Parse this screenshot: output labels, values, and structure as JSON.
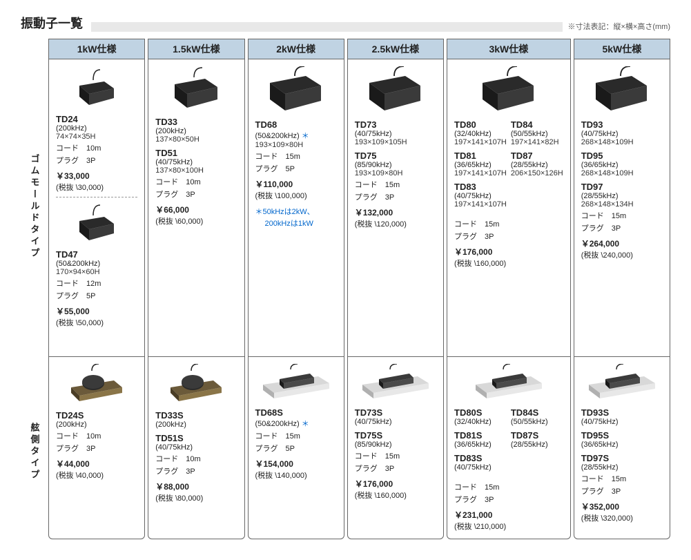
{
  "title": "振動子一覧",
  "dim_note": "※寸法表記：縦×横×高さ(mm)",
  "row_labels": {
    "top": "ゴムモールドタイプ",
    "bottom": "舷側タイプ"
  },
  "columns": [
    {
      "header": "1kW仕様",
      "top": [
        {
          "img": "box-small",
          "model": "TD24",
          "freq": "(200kHz)",
          "dim": "74×74×35H",
          "cord": "コード　10m",
          "plug": "プラグ　3P",
          "price": "￥33,000",
          "price_ex": "(税抜 \\30,000)"
        },
        {
          "divider": true
        },
        {
          "img": "box-small",
          "model": "TD47",
          "freq": "(50&200kHz)",
          "dim": "170×94×60H",
          "cord": "コード　12m",
          "plug": "プラグ　5P",
          "price": "￥55,000",
          "price_ex": "(税抜 \\50,000)"
        }
      ],
      "bottom": [
        {
          "img": "bracket-brass",
          "model": "TD24S",
          "freq": "(200kHz)",
          "cord": "コード　10m",
          "plug": "プラグ　3P",
          "price": "￥44,000",
          "price_ex": "(税抜 \\40,000)"
        }
      ]
    },
    {
      "header": "1.5kW仕様",
      "top": [
        {
          "img": "box-med",
          "model": "TD33",
          "freq": "(200kHz)",
          "dim": "137×80×50H"
        },
        {
          "model": "TD51",
          "freq": "(40/75kHz)",
          "dim": "137×80×100H",
          "cord": "コード　10m",
          "plug": "プラグ　3P",
          "price": "￥66,000",
          "price_ex": "(税抜 \\60,000)"
        }
      ],
      "bottom": [
        {
          "img": "bracket-brass",
          "model": "TD33S",
          "freq": "(200kHz)"
        },
        {
          "model": "TD51S",
          "freq": "(40/75kHz)",
          "cord": "コード　10m",
          "plug": "プラグ　3P",
          "price": "￥88,000",
          "price_ex": "(税抜 \\80,000)"
        }
      ]
    },
    {
      "header": "2kW仕様",
      "top": [
        {
          "img": "box-large",
          "model": "TD68",
          "freq": "(50&200kHz)",
          "star": "＊",
          "dim": "193×109×80H",
          "cord": "コード　15m",
          "plug": "プラグ　5P",
          "price": "￥110,000",
          "price_ex": "(税抜 \\100,000)",
          "note1": "＊50kHzは2kW、",
          "note2": "　 200kHzは1kW"
        }
      ],
      "bottom": [
        {
          "img": "bracket-steel",
          "model": "TD68S",
          "freq": "(50&200kHz)",
          "star": "＊",
          "cord": "コード　15m",
          "plug": "プラグ　5P",
          "price": "￥154,000",
          "price_ex": "(税抜 \\140,000)"
        }
      ]
    },
    {
      "header": "2.5kW仕様",
      "top": [
        {
          "img": "box-large",
          "model": "TD73",
          "freq": "(40/75kHz)",
          "dim": "193×109×105H"
        },
        {
          "model": "TD75",
          "freq": "(85/90kHz)",
          "dim": "193×109×80H",
          "cord": "コード　15m",
          "plug": "プラグ　3P",
          "price": "￥132,000",
          "price_ex": "(税抜 \\120,000)"
        }
      ],
      "bottom": [
        {
          "img": "bracket-steel",
          "model": "TD73S",
          "freq": "(40/75kHz)"
        },
        {
          "model": "TD75S",
          "freq": "(85/90kHz)",
          "cord": "コード　15m",
          "plug": "プラグ　3P",
          "price": "￥176,000",
          "price_ex": "(税抜 \\160,000)"
        }
      ]
    },
    {
      "header": "3kW仕様",
      "top_pair": {
        "img": "box-large",
        "left": [
          {
            "model": "TD80",
            "freq": "(32/40kHz)",
            "dim": "197×141×107H"
          },
          {
            "model": "TD81",
            "freq": "(36/65kHz)",
            "dim": "197×141×107H"
          },
          {
            "model": "TD83",
            "freq": "(40/75kHz)",
            "dim": "197×141×107H"
          }
        ],
        "right": [
          {
            "model": "TD84",
            "freq": "(50/55kHz)",
            "dim": "197×141×82H"
          },
          {
            "model": "TD87",
            "freq": "(28/55kHz)",
            "dim": "206×150×126H"
          }
        ],
        "cord": "コード　15m",
        "plug": "プラグ　3P",
        "price": "￥176,000",
        "price_ex": "(税抜 \\160,000)"
      },
      "bottom_pair": {
        "img": "bracket-steel",
        "left": [
          {
            "model": "TD80S",
            "freq": "(32/40kHz)"
          },
          {
            "model": "TD81S",
            "freq": "(36/65kHz)"
          },
          {
            "model": "TD83S",
            "freq": "(40/75kHz)"
          }
        ],
        "right": [
          {
            "model": "TD84S",
            "freq": "(50/55kHz)"
          },
          {
            "model": "TD87S",
            "freq": "(28/55kHz)"
          }
        ],
        "cord": "コード　15m",
        "plug": "プラグ　3P",
        "price": "￥231,000",
        "price_ex": "(税抜 \\210,000)"
      }
    },
    {
      "header": "5kW仕様",
      "top": [
        {
          "img": "box-large",
          "model": "TD93",
          "freq": "(40/75kHz)",
          "dim": "268×148×109H"
        },
        {
          "model": "TD95",
          "freq": "(36/65kHz)",
          "dim": "268×148×109H"
        },
        {
          "model": "TD97",
          "freq": "(28/55kHz)",
          "dim": "268×148×134H",
          "cord": "コード　15m",
          "plug": "プラグ　3P",
          "price": "￥264,000",
          "price_ex": "(税抜 \\240,000)"
        }
      ],
      "bottom": [
        {
          "img": "bracket-steel",
          "model": "TD93S",
          "freq": "(40/75kHz)"
        },
        {
          "model": "TD95S",
          "freq": "(36/65kHz)"
        },
        {
          "model": "TD97S",
          "freq": "(28/55kHz)",
          "cord": "コード　15m",
          "plug": "プラグ　3P",
          "price": "￥352,000",
          "price_ex": "(税抜 \\320,000)"
        }
      ]
    }
  ]
}
